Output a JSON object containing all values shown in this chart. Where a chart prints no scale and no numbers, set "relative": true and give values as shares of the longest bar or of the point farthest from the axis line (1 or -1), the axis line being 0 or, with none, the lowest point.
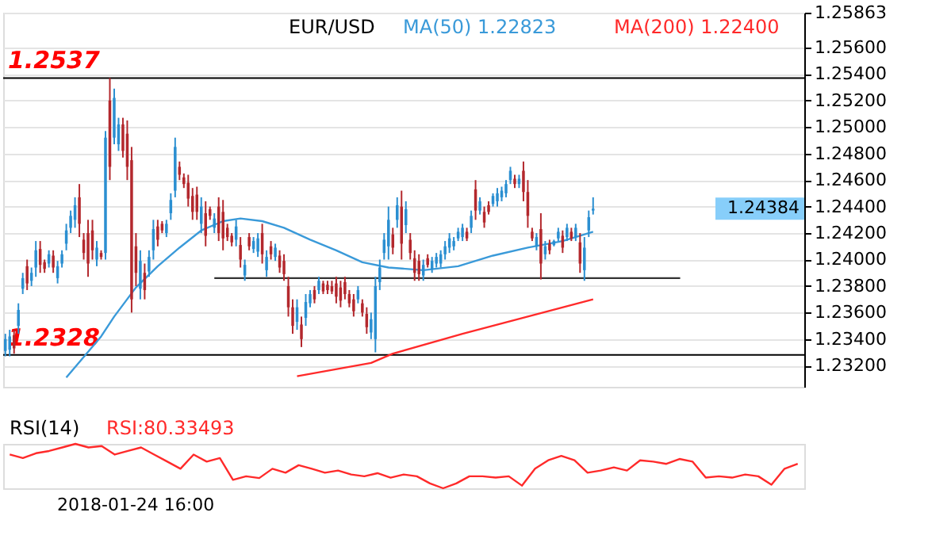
{
  "chart_data": [
    {
      "type": "candlestick",
      "title": "EUR/USD",
      "legend": "top",
      "tick_labels": "y",
      "grid": "y",
      "categories": [
        null,
        null,
        null,
        null,
        null,
        null,
        null,
        null,
        null,
        null,
        null,
        null,
        null,
        null,
        null,
        null,
        null,
        null,
        null,
        null,
        null,
        null,
        null,
        null,
        null,
        null,
        null,
        null,
        null,
        null,
        null,
        null,
        null,
        null,
        null,
        null,
        null,
        null,
        null,
        null,
        null,
        null,
        null,
        null,
        null,
        null,
        null,
        null,
        null,
        null,
        null,
        null,
        null,
        null,
        null,
        null,
        null,
        null,
        null,
        null,
        null,
        null,
        null,
        null,
        null,
        null,
        null,
        null,
        null,
        null,
        null,
        null,
        null,
        null,
        null,
        null,
        null,
        null,
        null,
        null,
        null,
        null,
        null,
        null,
        null,
        null,
        null,
        null,
        null,
        null,
        null,
        null,
        null,
        null,
        null,
        null,
        null,
        null,
        null,
        null,
        null,
        null,
        null,
        null,
        null,
        null,
        null,
        null,
        null,
        null,
        null,
        null,
        null,
        null,
        null,
        null,
        null,
        null,
        null,
        null,
        null,
        null,
        null,
        null,
        null,
        null,
        null,
        null,
        null,
        null,
        null,
        null,
        null,
        null,
        null,
        null,
        null,
        null,
        null,
        null,
        null,
        null,
        null,
        null,
        null,
        null,
        null,
        null,
        null,
        null,
        null,
        null,
        null,
        null,
        null,
        null,
        null,
        null,
        null,
        null,
        null,
        null,
        null,
        null,
        null,
        null,
        null,
        null,
        null,
        null,
        null,
        null,
        null,
        null,
        null,
        null,
        null,
        null,
        null,
        null,
        null,
        null,
        null,
        null
      ],
      "ohlc": [
        [
          1.2331,
          1.2344,
          1.2327,
          1.234
        ],
        [
          1.2332,
          1.2347,
          1.2327,
          1.2342
        ],
        [
          1.2343,
          1.2347,
          1.2329,
          1.2333
        ],
        [
          1.235,
          1.2367,
          1.2344,
          1.2362
        ],
        [
          1.2378,
          1.239,
          1.2374,
          1.2386
        ],
        [
          1.2395,
          1.24,
          1.2377,
          1.2382
        ],
        [
          1.2384,
          1.2394,
          1.238,
          1.239
        ],
        [
          1.2394,
          1.2414,
          1.2387,
          1.2407
        ],
        [
          1.2408,
          1.2414,
          1.239,
          1.2396
        ],
        [
          1.2398,
          1.24,
          1.239,
          1.2393
        ],
        [
          1.2397,
          1.2407,
          1.2394,
          1.2404
        ],
        [
          1.2403,
          1.2407,
          1.239,
          1.2394
        ],
        [
          1.2386,
          1.2399,
          1.2382,
          1.2395
        ],
        [
          1.2397,
          1.2407,
          1.2394,
          1.2404
        ],
        [
          1.2412,
          1.2427,
          1.2407,
          1.2422
        ],
        [
          1.2424,
          1.2437,
          1.242,
          1.2433
        ],
        [
          1.243,
          1.2447,
          1.2424,
          1.2441
        ],
        [
          1.2447,
          1.2457,
          1.2417,
          1.2427
        ],
        [
          1.2415,
          1.242,
          1.24,
          1.2405
        ],
        [
          1.242,
          1.243,
          1.2387,
          1.2397
        ],
        [
          1.2422,
          1.243,
          1.24,
          1.2407
        ],
        [
          1.24,
          1.2414,
          1.2395,
          1.2409
        ],
        [
          1.2405,
          1.2407,
          1.24,
          1.2402
        ],
        [
          1.2405,
          1.2497,
          1.24,
          1.2492
        ],
        [
          1.252,
          1.2537,
          1.246,
          1.247
        ],
        [
          1.2492,
          1.2529,
          1.2487,
          1.2522
        ],
        [
          1.2487,
          1.2507,
          1.2482,
          1.2502
        ],
        [
          1.2502,
          1.2507,
          1.2477,
          1.2482
        ],
        [
          1.2495,
          1.2505,
          1.246,
          1.247
        ],
        [
          1.2475,
          1.2485,
          1.236,
          1.237
        ],
        [
          1.241,
          1.242,
          1.238,
          1.239
        ],
        [
          1.2378,
          1.2407,
          1.237,
          1.2399
        ],
        [
          1.239,
          1.2397,
          1.237,
          1.2377
        ],
        [
          1.2391,
          1.2407,
          1.2387,
          1.2402
        ],
        [
          1.2407,
          1.243,
          1.24,
          1.2423
        ],
        [
          1.2425,
          1.243,
          1.241,
          1.2415
        ],
        [
          1.2427,
          1.2429,
          1.242,
          1.2422
        ],
        [
          1.242,
          1.243,
          1.2417,
          1.2427
        ],
        [
          1.2435,
          1.245,
          1.243,
          1.2445
        ],
        [
          1.2452,
          1.2492,
          1.2447,
          1.2485
        ],
        [
          1.247,
          1.2474,
          1.246,
          1.2464
        ],
        [
          1.2462,
          1.2465,
          1.2454,
          1.2457
        ],
        [
          1.2458,
          1.2464,
          1.244,
          1.2446
        ],
        [
          1.2448,
          1.2454,
          1.243,
          1.2436
        ],
        [
          1.2449,
          1.2455,
          1.243,
          1.2436
        ],
        [
          1.2427,
          1.2447,
          1.242,
          1.244
        ],
        [
          1.2435,
          1.2444,
          1.241,
          1.2418
        ],
        [
          1.2438,
          1.244,
          1.243,
          1.2433
        ],
        [
          1.2424,
          1.2435,
          1.242,
          1.2431
        ],
        [
          1.244,
          1.2447,
          1.2414,
          1.242
        ],
        [
          1.2436,
          1.2445,
          1.2407,
          1.2416
        ],
        [
          1.2424,
          1.2427,
          1.2414,
          1.2417
        ],
        [
          1.2418,
          1.242,
          1.241,
          1.2413
        ],
        [
          1.2415,
          1.243,
          1.241,
          1.2425
        ],
        [
          1.2411,
          1.2417,
          1.2394,
          1.24
        ],
        [
          1.2388,
          1.24,
          1.2384,
          1.2396
        ],
        [
          1.2417,
          1.242,
          1.2407,
          1.241
        ],
        [
          1.2408,
          1.2417,
          1.2405,
          1.2414
        ],
        [
          1.2406,
          1.242,
          1.2402,
          1.2416
        ],
        [
          1.242,
          1.2427,
          1.2397,
          1.2404
        ],
        [
          1.2392,
          1.2407,
          1.2387,
          1.2402
        ],
        [
          1.241,
          1.2414,
          1.24,
          1.2404
        ],
        [
          1.2402,
          1.2412,
          1.2399,
          1.2409
        ],
        [
          1.2403,
          1.2407,
          1.239,
          1.2394
        ],
        [
          1.2399,
          1.2404,
          1.2384,
          1.2389
        ],
        [
          1.238,
          1.2387,
          1.2357,
          1.2364
        ],
        [
          1.2364,
          1.237,
          1.2344,
          1.235
        ],
        [
          1.2353,
          1.237,
          1.2347,
          1.2364
        ],
        [
          1.2351,
          1.2357,
          1.2334,
          1.234
        ],
        [
          1.2356,
          1.2374,
          1.235,
          1.2368
        ],
        [
          1.2367,
          1.2377,
          1.2364,
          1.2374
        ],
        [
          1.2377,
          1.238,
          1.2367,
          1.237
        ],
        [
          1.2377,
          1.2387,
          1.2374,
          1.2384
        ],
        [
          1.2382,
          1.2384,
          1.2374,
          1.2376
        ],
        [
          1.2381,
          1.2384,
          1.2374,
          1.2377
        ],
        [
          1.238,
          1.2384,
          1.2374,
          1.2376
        ],
        [
          1.2382,
          1.2387,
          1.2367,
          1.2372
        ],
        [
          1.2379,
          1.2384,
          1.2364,
          1.2369
        ],
        [
          1.2383,
          1.2387,
          1.237,
          1.2374
        ],
        [
          1.2374,
          1.2377,
          1.2364,
          1.2367
        ],
        [
          1.237,
          1.2374,
          1.2357,
          1.2361
        ],
        [
          1.237,
          1.238,
          1.2367,
          1.2377
        ],
        [
          1.2367,
          1.237,
          1.2357,
          1.236
        ],
        [
          1.2359,
          1.2364,
          1.2344,
          1.2349
        ],
        [
          1.2345,
          1.236,
          1.234,
          1.2355
        ],
        [
          1.234,
          1.2387,
          1.233,
          1.238
        ],
        [
          1.2383,
          1.24,
          1.2377,
          1.2394
        ],
        [
          1.2405,
          1.242,
          1.24,
          1.2415
        ],
        [
          1.241,
          1.244,
          1.24,
          1.243
        ],
        [
          1.2419,
          1.2424,
          1.2404,
          1.2409
        ],
        [
          1.243,
          1.2447,
          1.2424,
          1.2441
        ],
        [
          1.244,
          1.2452,
          1.24,
          1.2412
        ],
        [
          1.2426,
          1.2444,
          1.242,
          1.2438
        ],
        [
          1.2415,
          1.242,
          1.24,
          1.2405
        ],
        [
          1.2401,
          1.2407,
          1.2384,
          1.239
        ],
        [
          1.2399,
          1.2404,
          1.2384,
          1.2389
        ],
        [
          1.2388,
          1.24,
          1.2384,
          1.2396
        ],
        [
          1.2401,
          1.2404,
          1.2394,
          1.2396
        ],
        [
          1.2393,
          1.2402,
          1.239,
          1.2399
        ],
        [
          1.2397,
          1.2405,
          1.2394,
          1.2402
        ],
        [
          1.2397,
          1.2407,
          1.2394,
          1.2404
        ],
        [
          1.2404,
          1.2414,
          1.24,
          1.241
        ],
        [
          1.2409,
          1.242,
          1.2405,
          1.2416
        ],
        [
          1.241,
          1.2417,
          1.2407,
          1.2414
        ],
        [
          1.2416,
          1.2424,
          1.2414,
          1.2421
        ],
        [
          1.2417,
          1.2427,
          1.2414,
          1.2424
        ],
        [
          1.2421,
          1.2424,
          1.2414,
          1.2416
        ],
        [
          1.2424,
          1.2437,
          1.242,
          1.2433
        ],
        [
          1.2453,
          1.246,
          1.243,
          1.2437
        ],
        [
          1.2437,
          1.2447,
          1.2434,
          1.2444
        ],
        [
          1.2436,
          1.244,
          1.2424,
          1.2428
        ],
        [
          1.2441,
          1.2444,
          1.2434,
          1.2436
        ],
        [
          1.2442,
          1.245,
          1.244,
          1.2448
        ],
        [
          1.2444,
          1.2454,
          1.244,
          1.245
        ],
        [
          1.2447,
          1.2455,
          1.2444,
          1.2452
        ],
        [
          1.245,
          1.246,
          1.2447,
          1.2457
        ],
        [
          1.246,
          1.247,
          1.2457,
          1.2467
        ],
        [
          1.2461,
          1.2464,
          1.2454,
          1.2457
        ],
        [
          1.2457,
          1.2464,
          1.2454,
          1.2461
        ],
        [
          1.2467,
          1.2474,
          1.2444,
          1.2451
        ],
        [
          1.2451,
          1.246,
          1.2424,
          1.2433
        ],
        [
          1.2421,
          1.2424,
          1.2414,
          1.2416
        ],
        [
          1.241,
          1.242,
          1.2407,
          1.2417
        ],
        [
          1.2423,
          1.2435,
          1.2385,
          1.2397
        ],
        [
          1.2404,
          1.2414,
          1.24,
          1.241
        ],
        [
          1.2412,
          1.2415,
          1.2404,
          1.2407
        ],
        [
          1.2411,
          1.2415,
          1.241,
          1.2414
        ],
        [
          1.2416,
          1.2424,
          1.2414,
          1.2421
        ],
        [
          1.2418,
          1.2422,
          1.2405,
          1.2409
        ],
        [
          1.2417,
          1.2427,
          1.2414,
          1.2424
        ],
        [
          1.2421,
          1.2424,
          1.2414,
          1.2416
        ],
        [
          1.2417,
          1.2427,
          1.2414,
          1.2424
        ],
        [
          1.2413,
          1.242,
          1.239,
          1.2397
        ],
        [
          1.2392,
          1.2417,
          1.2384,
          1.2409
        ],
        [
          1.2422,
          1.2437,
          1.2417,
          1.2432
        ],
        [
          1.2437,
          1.2447,
          1.2434,
          1.24384
        ],
        null,
        null,
        null,
        null,
        null,
        null,
        null,
        null,
        null,
        null,
        null,
        null,
        null,
        null,
        null,
        null,
        null,
        null,
        null,
        null,
        null,
        null,
        null,
        null,
        null,
        null,
        null,
        null,
        null,
        null,
        null,
        null,
        null,
        null,
        null,
        null,
        null,
        null,
        null,
        null,
        null,
        null,
        null,
        null,
        null,
        null,
        null,
        null
      ],
      "colors": [
        "#2b8fd1",
        "#2b8fd1",
        "#b3282d",
        "#2b8fd1",
        "#2b8fd1",
        "#b3282d",
        "#2b8fd1",
        "#2b8fd1",
        "#b3282d",
        "#b3282d",
        "#2b8fd1",
        "#b3282d",
        "#2b8fd1",
        "#2b8fd1",
        "#2b8fd1",
        "#2b8fd1",
        "#2b8fd1",
        "#b3282d",
        "#b3282d",
        "#b3282d",
        "#b3282d",
        "#2b8fd1",
        "#b3282d",
        "#2b8fd1",
        "#b3282d",
        "#2b8fd1",
        "#2b8fd1",
        "#b3282d",
        "#b3282d",
        "#b3282d",
        "#b3282d",
        "#2b8fd1",
        "#b3282d",
        "#2b8fd1",
        "#2b8fd1",
        "#b3282d",
        "#b3282d",
        "#2b8fd1",
        "#2b8fd1",
        "#2b8fd1",
        "#b3282d",
        "#b3282d",
        "#b3282d",
        "#b3282d",
        "#b3282d",
        "#2b8fd1",
        "#b3282d",
        "#b3282d",
        "#2b8fd1",
        "#b3282d",
        "#b3282d",
        "#b3282d",
        "#b3282d",
        "#2b8fd1",
        "#b3282d",
        "#2b8fd1",
        "#b3282d",
        "#2b8fd1",
        "#2b8fd1",
        "#b3282d",
        "#2b8fd1",
        "#b3282d",
        "#2b8fd1",
        "#b3282d",
        "#b3282d",
        "#b3282d",
        "#b3282d",
        "#2b8fd1",
        "#b3282d",
        "#2b8fd1",
        "#2b8fd1",
        "#b3282d",
        "#2b8fd1",
        "#b3282d",
        "#b3282d",
        "#b3282d",
        "#b3282d",
        "#b3282d",
        "#b3282d",
        "#b3282d",
        "#b3282d",
        "#2b8fd1",
        "#b3282d",
        "#b3282d",
        "#2b8fd1",
        "#2b8fd1",
        "#2b8fd1",
        "#2b8fd1",
        "#2b8fd1",
        "#b3282d",
        "#2b8fd1",
        "#b3282d",
        "#2b8fd1",
        "#b3282d",
        "#b3282d",
        "#b3282d",
        "#2b8fd1",
        "#b3282d",
        "#2b8fd1",
        "#2b8fd1",
        "#2b8fd1",
        "#2b8fd1",
        "#2b8fd1",
        "#2b8fd1",
        "#2b8fd1",
        "#2b8fd1",
        "#b3282d",
        "#2b8fd1",
        "#b3282d",
        "#2b8fd1",
        "#b3282d",
        "#b3282d",
        "#2b8fd1",
        "#2b8fd1",
        "#2b8fd1",
        "#2b8fd1",
        "#2b8fd1",
        "#b3282d",
        "#2b8fd1",
        "#b3282d",
        "#b3282d",
        "#b3282d",
        "#2b8fd1",
        "#b3282d",
        "#2b8fd1",
        "#b3282d",
        "#2b8fd1",
        "#2b8fd1",
        "#b3282d",
        "#2b8fd1",
        "#b3282d",
        "#2b8fd1",
        "#b3282d",
        "#2b8fd1",
        "#2b8fd1",
        "#2b8fd1",
        null,
        null,
        null,
        null,
        null,
        null,
        null,
        null,
        null,
        null,
        null,
        null,
        null,
        null,
        null,
        null,
        null,
        null,
        null,
        null,
        null,
        null,
        null,
        null,
        null,
        null,
        null,
        null,
        null,
        null,
        null,
        null,
        null,
        null,
        null,
        null,
        null,
        null,
        null,
        null,
        null,
        null,
        null,
        null,
        null,
        null,
        null,
        null
      ],
      "series": [
        {
          "name": "MA(50)  1.22823",
          "type": "line",
          "color": "#3a9ad9",
          "values": [
            null,
            null,
            null,
            null,
            null,
            null,
            null,
            null,
            null,
            null,
            null,
            null,
            null,
            null,
            1.2311,
            null,
            null,
            null,
            null,
            null,
            null,
            null,
            1.2342,
            null,
            null,
            1.2357,
            null,
            null,
            null,
            null,
            1.2379,
            null,
            null,
            null,
            null,
            1.2395,
            null,
            null,
            null,
            null,
            1.2409,
            null,
            null,
            null,
            null,
            1.2422,
            null,
            null,
            null,
            null,
            1.2429,
            null,
            null,
            null,
            1.2431,
            null,
            null,
            null,
            null,
            1.2429,
            null,
            null,
            null,
            null,
            1.2424,
            null,
            null,
            null,
            null,
            null,
            1.2415,
            null,
            null,
            null,
            null,
            null,
            1.2407,
            null,
            null,
            null,
            null,
            null,
            1.2398,
            null,
            null,
            null,
            null,
            null,
            1.2394,
            null,
            null,
            null,
            null,
            null,
            null,
            null,
            1.2392,
            null,
            null,
            null,
            null,
            null,
            null,
            null,
            1.2395,
            null,
            null,
            null,
            null,
            null,
            null,
            null,
            1.2403,
            null,
            null,
            null,
            null,
            null,
            null,
            null,
            1.2409,
            null,
            null,
            null,
            null,
            null,
            null,
            null,
            1.2414,
            null,
            null,
            null,
            null,
            null,
            null,
            1.2421,
            null,
            null,
            null,
            null,
            null,
            null,
            null,
            null,
            null,
            null,
            null,
            null,
            null,
            null,
            null,
            null,
            null,
            null,
            null,
            null,
            null,
            null,
            null,
            null,
            null,
            null,
            null,
            null,
            null,
            null,
            null,
            null,
            null,
            null,
            null,
            null,
            null,
            null,
            null,
            null,
            null,
            null,
            null,
            null,
            null,
            null,
            null,
            null
          ]
        },
        {
          "name": "MA(200)  1.22400",
          "type": "line",
          "color": "#ff2a2a",
          "values": [
            null,
            null,
            null,
            null,
            null,
            null,
            null,
            null,
            null,
            null,
            null,
            null,
            null,
            null,
            null,
            null,
            null,
            null,
            null,
            null,
            null,
            null,
            null,
            null,
            null,
            null,
            null,
            null,
            null,
            null,
            null,
            null,
            null,
            null,
            null,
            null,
            null,
            null,
            null,
            null,
            null,
            null,
            null,
            null,
            null,
            null,
            null,
            null,
            null,
            null,
            null,
            null,
            null,
            null,
            null,
            null,
            null,
            null,
            null,
            null,
            null,
            null,
            null,
            null,
            null,
            null,
            null,
            1.2312,
            null,
            null,
            null,
            null,
            null,
            null,
            null,
            null,
            null,
            null,
            null,
            null,
            null,
            null,
            null,
            null,
            1.2322,
            null,
            null,
            null,
            null,
            1.2329,
            null,
            null,
            null,
            null,
            null,
            null,
            null,
            null,
            null,
            null,
            null,
            null,
            null,
            null,
            null,
            1.2344,
            null,
            null,
            null,
            null,
            null,
            null,
            null,
            null,
            null,
            null,
            null,
            null,
            null,
            null,
            1.2357,
            null,
            null,
            null,
            null,
            null,
            null,
            null,
            null,
            null,
            null,
            null,
            null,
            null,
            null,
            1.237,
            null,
            null,
            null,
            null,
            null,
            null,
            null,
            null,
            null,
            null,
            null,
            null,
            null,
            null,
            null,
            null,
            null,
            null,
            null,
            null,
            null,
            null,
            null,
            null,
            null,
            null,
            null,
            null,
            null,
            null,
            null,
            null,
            null,
            null,
            null,
            null,
            null,
            null,
            null,
            null,
            null,
            null,
            null,
            null,
            null,
            null,
            null,
            null
          ]
        },
        {
          "type": "line",
          "color": "#333333",
          "values": [
            null,
            null,
            null,
            null,
            null,
            null,
            null,
            null,
            null,
            null,
            null,
            null,
            null,
            null,
            null,
            null,
            null,
            null,
            null,
            null,
            null,
            null,
            null,
            null,
            null,
            null,
            null,
            null,
            null,
            null,
            null,
            null,
            null,
            null,
            null,
            null,
            null,
            null,
            null,
            null,
            null,
            null,
            null,
            null,
            null,
            null,
            null,
            null,
            1.2386,
            null,
            null,
            null,
            null,
            null,
            null,
            null,
            null,
            null,
            null,
            null,
            null,
            null,
            null,
            null,
            null,
            null,
            null,
            null,
            null,
            null,
            null,
            null,
            null,
            null,
            null,
            null,
            null,
            null,
            null,
            null,
            null,
            null,
            null,
            null,
            null,
            null,
            null,
            null,
            null,
            null,
            null,
            null,
            null,
            null,
            null,
            null,
            null,
            null,
            null,
            null,
            null,
            null,
            null,
            null,
            null,
            null,
            null,
            null,
            null,
            null,
            null,
            null,
            null,
            null,
            null,
            null,
            null,
            null,
            null,
            null,
            null,
            null,
            null,
            null,
            null,
            null,
            null,
            null,
            null,
            null,
            null,
            null,
            null,
            null,
            null,
            null,
            null,
            null,
            null,
            null,
            null,
            null,
            null,
            null,
            null,
            null,
            null,
            null,
            null,
            null,
            null,
            null,
            null,
            null,
            null,
            1.2386,
            null,
            null,
            null,
            null,
            null,
            null,
            null,
            null,
            null,
            null,
            null,
            null,
            null,
            null,
            null,
            null,
            null,
            null,
            null,
            null,
            null,
            null,
            null,
            null,
            null,
            null,
            null,
            null
          ]
        }
      ],
      "ref_lines": [
        {
          "axis": "y",
          "value": 1.2537,
          "label": "1.2537",
          "color": "#000000"
        },
        {
          "axis": "y",
          "value": 1.2328,
          "label": "1.2328",
          "color": "#000000"
        },
        {
          "axis": "y",
          "value": 1.24384,
          "label": "1.24384",
          "color": "#87cefa"
        }
      ],
      "ylim": [
        1.2304,
        1.25863
      ],
      "yticks": [
        {
          "value": 1.25863,
          "label": "1.25863"
        },
        {
          "value": 1.232,
          "label": "1.23200"
        },
        {
          "value": 1.234,
          "label": "1.23400"
        },
        {
          "value": 1.236,
          "label": "1.23600"
        },
        {
          "value": 1.238,
          "label": "1.23800"
        },
        {
          "value": 1.24,
          "label": "1.24000"
        },
        {
          "value": 1.242,
          "label": "1.24200"
        },
        {
          "value": 1.244,
          "label": "1.24400"
        },
        {
          "value": 1.246,
          "label": "1.24600"
        },
        {
          "value": 1.248,
          "label": "1.24800"
        },
        {
          "value": 1.25,
          "label": "1.25000"
        },
        {
          "value": 1.252,
          "label": "1.25200"
        },
        {
          "value": 1.254,
          "label": "1.25400"
        },
        {
          "value": 1.256,
          "label": "1.25600"
        }
      ]
    },
    {
      "type": "line",
      "title": "RSI(14)",
      "relative": true,
      "legend": "top left",
      "tick_labels": false,
      "categories": [
        null,
        null,
        null,
        null,
        null,
        null,
        null,
        null,
        null,
        null,
        null,
        null,
        null,
        null,
        null,
        null,
        null,
        null,
        null,
        null,
        null,
        null,
        null,
        null,
        null,
        null,
        null,
        null,
        null,
        null,
        null,
        null,
        null,
        null,
        null,
        null,
        null,
        null,
        null,
        null,
        null,
        null,
        null,
        null,
        null,
        null,
        null,
        null,
        null,
        null,
        null,
        null,
        null,
        null,
        null,
        null,
        null,
        null,
        null,
        null,
        null
      ],
      "series": [
        {
          "name": "RSI:80.33493",
          "color": "#ff2a2a",
          "values": [
            0.76,
            0.68,
            0.79,
            0.84,
            0.92,
            1,
            0.92,
            0.95,
            0.76,
            0.84,
            0.92,
            0.76,
            0.6,
            0.44,
            0.76,
            0.6,
            0.68,
            0.19,
            0.27,
            0.23,
            0.44,
            0.35,
            0.52,
            0.44,
            0.35,
            0.4,
            0.31,
            0.27,
            0.34,
            0.24,
            0.31,
            0.27,
            0.11,
            0,
            0.11,
            0.27,
            0.27,
            0.24,
            0.27,
            0.06,
            0.44,
            0.63,
            0.73,
            0.63,
            0.35,
            0.4,
            0.47,
            0.4,
            0.63,
            0.6,
            0.55,
            0.66,
            0.6,
            0.24,
            0.27,
            0.24,
            0.31,
            0.27,
            0.08,
            0.44,
            0.55
          ]
        }
      ],
      "annotations": [
        "2018-01-24 16:00"
      ]
    }
  ]
}
